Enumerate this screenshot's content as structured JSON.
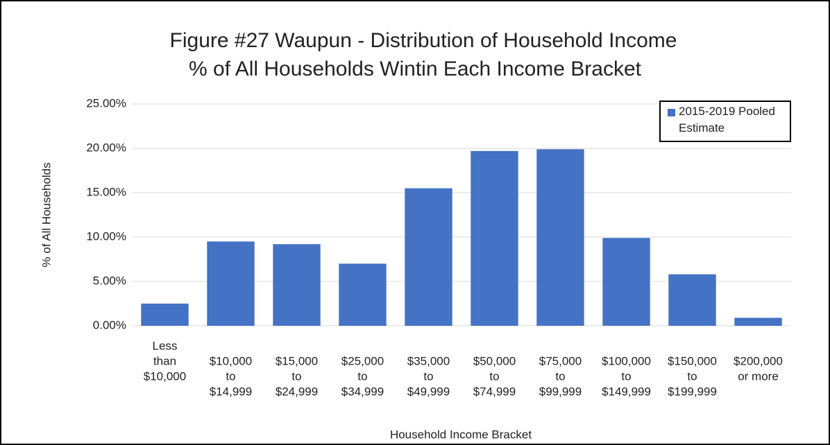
{
  "chart_data": {
    "type": "bar",
    "title": "Figure #27  Waupun - Distribution of Household Income",
    "subtitle": "% of All Households Wintin Each Income Bracket",
    "x_label": "Household Income Bracket",
    "y_label": "% of All Households",
    "categories": [
      [
        "Less",
        "than",
        "$10,000"
      ],
      [
        "$10,000",
        "to",
        "$14,999"
      ],
      [
        "$15,000",
        "to",
        "$24,999"
      ],
      [
        "$25,000",
        "to",
        "$34,999"
      ],
      [
        "$35,000",
        "to",
        "$49,999"
      ],
      [
        "$50,000",
        "to",
        "$74,999"
      ],
      [
        "$75,000",
        "to",
        "$99,999"
      ],
      [
        "$100,000",
        "to",
        "$149,999"
      ],
      [
        "$150,000",
        "to",
        "$199,999"
      ],
      [
        "$200,000",
        "or more"
      ]
    ],
    "series": [
      {
        "name": "2015-2019 Pooled Estimate",
        "color": "#4472c4",
        "values": [
          2.5,
          9.5,
          9.2,
          7.0,
          15.5,
          19.7,
          19.9,
          9.9,
          5.8,
          0.9
        ]
      }
    ],
    "ylim": [
      0,
      25
    ],
    "yticks": [
      {
        "value": 0,
        "label": "0.00%"
      },
      {
        "value": 5,
        "label": "5.00%"
      },
      {
        "value": 10,
        "label": "10.00%"
      },
      {
        "value": 15,
        "label": "15.00%"
      },
      {
        "value": 20,
        "label": "20.00%"
      },
      {
        "value": 25,
        "label": "25.00%"
      }
    ],
    "grid": true,
    "legend": "top-right"
  }
}
